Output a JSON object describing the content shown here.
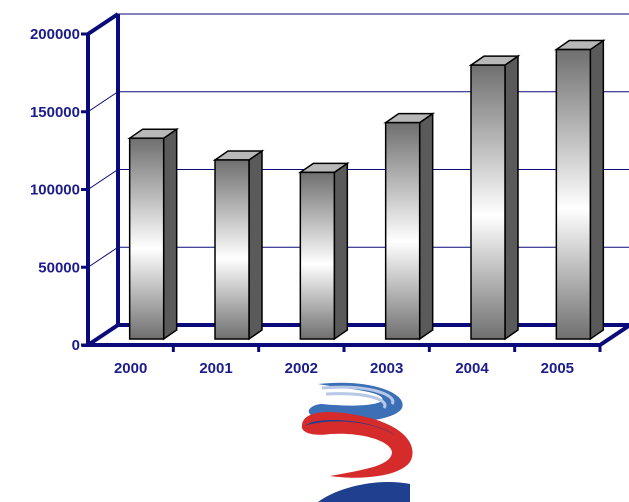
{
  "chart_data": {
    "type": "bar",
    "categories": [
      "2000",
      "2001",
      "2002",
      "2003",
      "2004",
      "2005"
    ],
    "values": [
      142000,
      128000,
      120000,
      152000,
      189000,
      199000
    ],
    "ylim": [
      0,
      200000
    ],
    "yticks": [
      0,
      50000,
      100000,
      150000,
      200000
    ],
    "ytick_labels": [
      "0",
      "50000",
      "100000",
      "150000",
      "200000"
    ],
    "grid": true,
    "colors": {
      "axis": "#0a0a7a",
      "tick_text": "#1c1c8c",
      "bar_light": "#ffffff",
      "bar_dark": "#707070",
      "bar_side": "#5a5a5a",
      "bar_top": "#b8b8b8"
    }
  },
  "logo": {
    "colors": [
      "#3b6fb6",
      "#b6c8e6",
      "#d62b2b",
      "#1f3f8f"
    ]
  }
}
